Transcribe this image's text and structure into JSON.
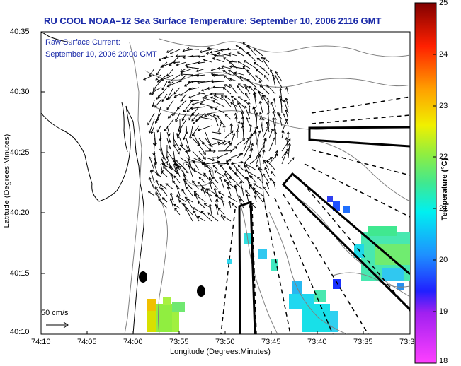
{
  "title": "RU COOL  NOAA–12  Sea Surface Temperature:  September 10, 2006 2116 GMT",
  "current_label": "Raw Surface Current:",
  "current_time": "September 10, 2006 20:00 GMT",
  "scale_label": "50 cm/s",
  "x_axis": {
    "label": "Longitude (Degrees:Minutes)",
    "ticks": [
      "74:10",
      "74:05",
      "74:00",
      "73:55",
      "73:50",
      "73:45",
      "73:40",
      "73:35",
      "73:3"
    ]
  },
  "y_axis": {
    "label": "Latitude (Degrees:Minutes)",
    "ticks": [
      "40:35",
      "40:30",
      "40:25",
      "40:20",
      "40:15",
      "40:10"
    ]
  },
  "colorbar": {
    "label": "Temperature (°C)",
    "ticks": [
      "25",
      "24",
      "23",
      "22",
      "21",
      "20",
      "19",
      "18"
    ],
    "range": [
      18,
      25
    ]
  },
  "colors": {
    "title_text": "#1a2aa8",
    "coast": "#000000",
    "bathymetry": "#808080"
  }
}
